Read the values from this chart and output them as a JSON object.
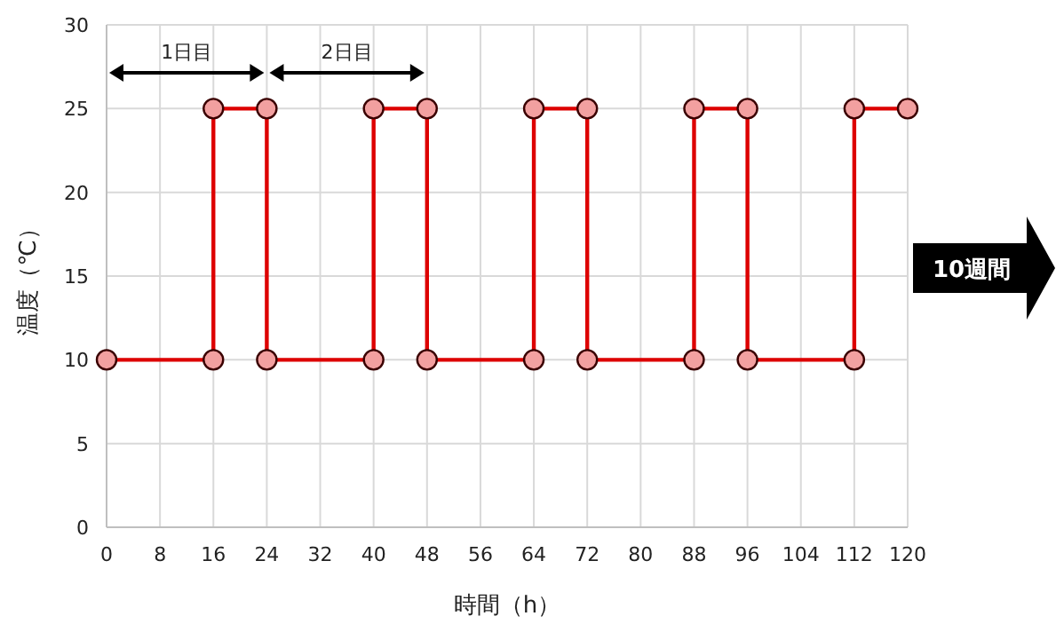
{
  "chart_data": {
    "type": "line",
    "xlabel": "時間（h）",
    "ylabel": "温度（℃）",
    "x": [
      0,
      16,
      16,
      24,
      24,
      40,
      40,
      48,
      48,
      64,
      64,
      72,
      72,
      88,
      88,
      96,
      96,
      112,
      112,
      120
    ],
    "series": [
      {
        "color": "#dd0000",
        "values": [
          10,
          10,
          25,
          25,
          10,
          10,
          25,
          25,
          10,
          10,
          25,
          25,
          10,
          10,
          25,
          25,
          10,
          10,
          25,
          25
        ]
      }
    ],
    "xlim": [
      0,
      120
    ],
    "xticks": [
      0,
      8,
      16,
      24,
      32,
      40,
      48,
      56,
      64,
      72,
      80,
      88,
      96,
      104,
      112,
      120
    ],
    "ylim": [
      0,
      30
    ],
    "yticks": [
      0,
      5,
      10,
      15,
      20,
      25,
      30
    ],
    "grid": true,
    "marker": "circle",
    "line_style": "solid",
    "annotations": [
      "1日目",
      "2日目",
      "10週間"
    ]
  }
}
